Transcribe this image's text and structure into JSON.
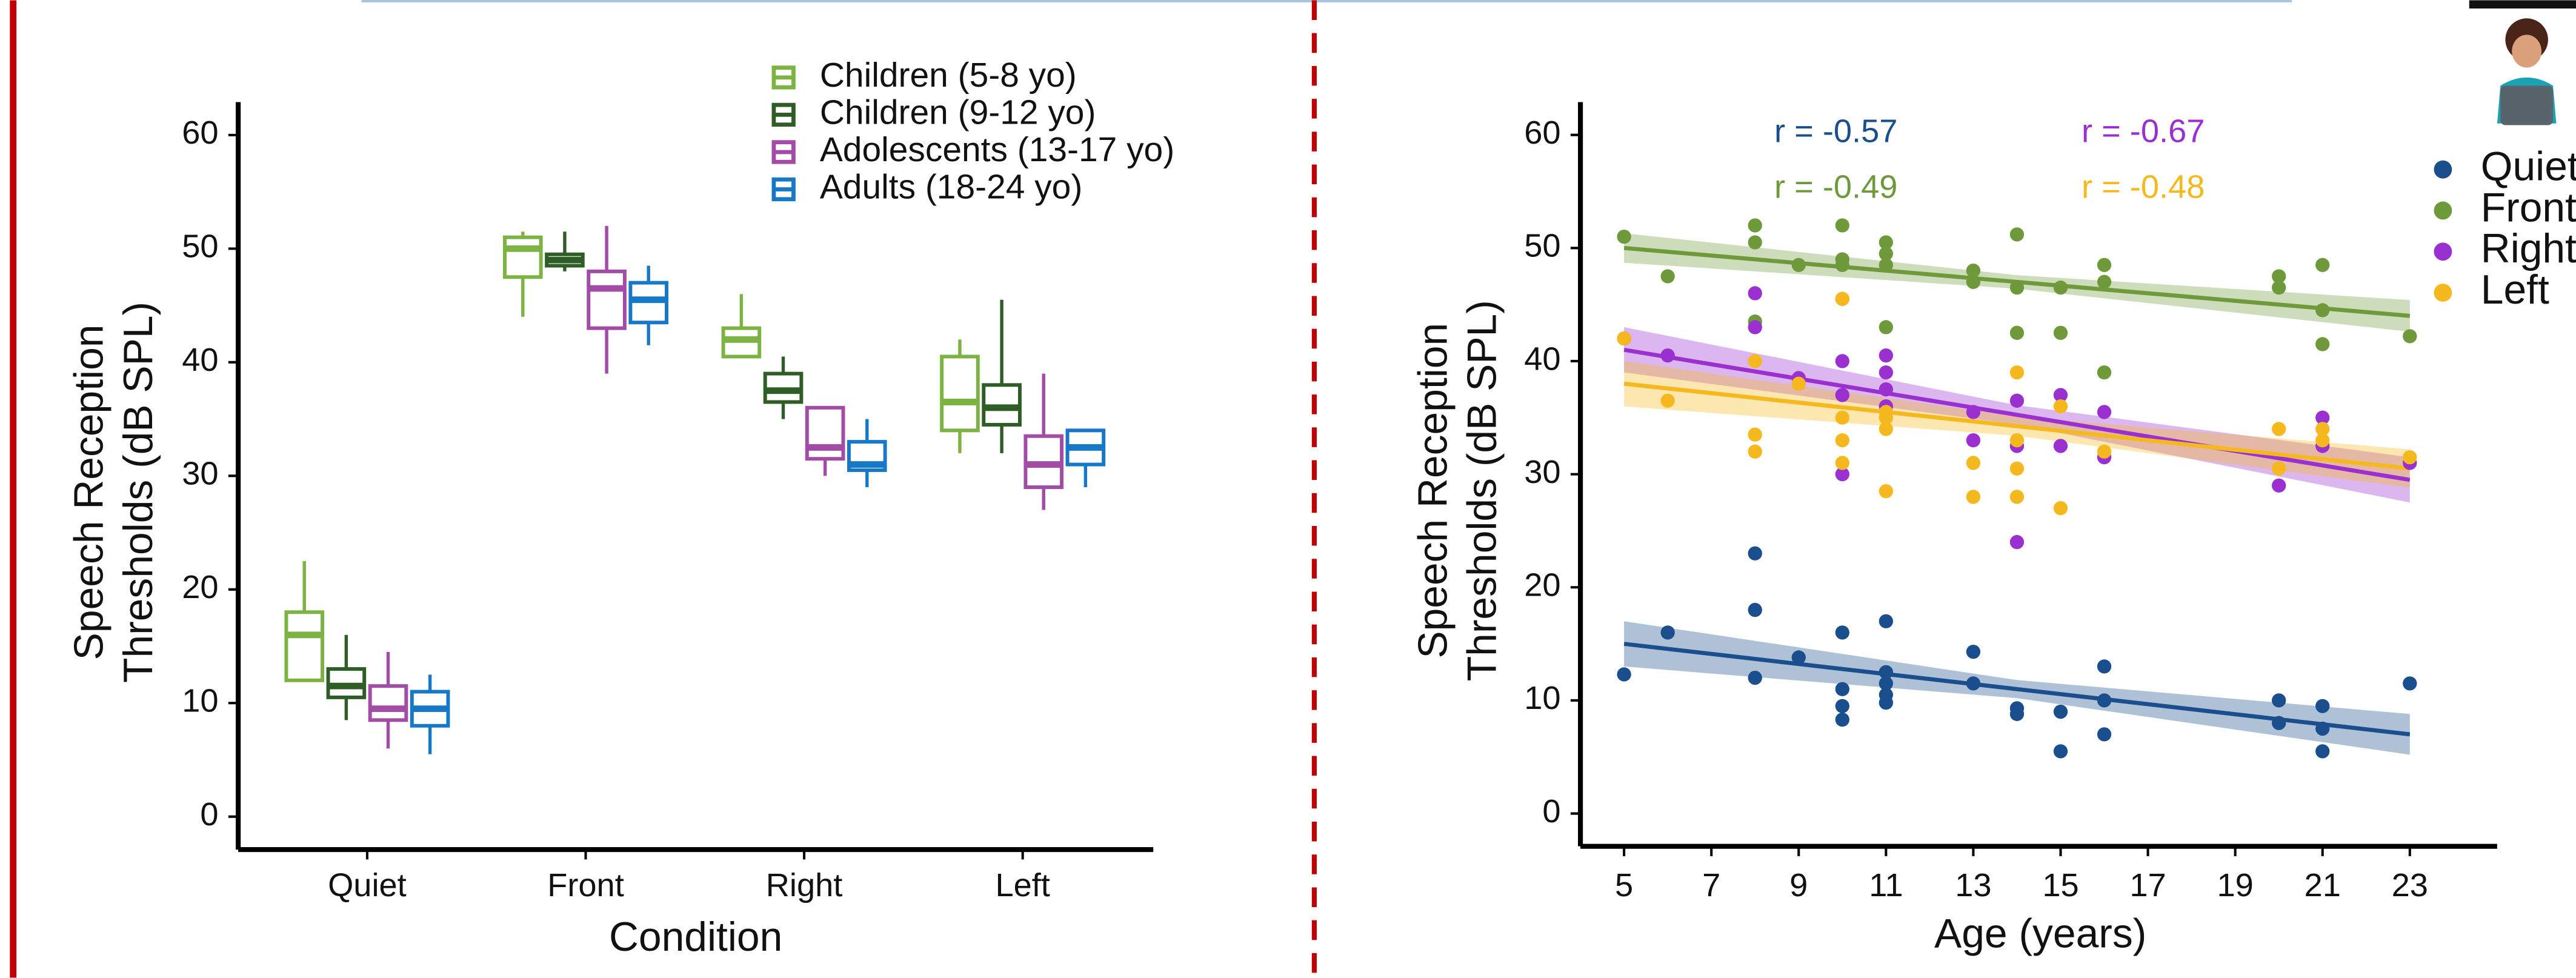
{
  "chart_data": [
    {
      "type": "box",
      "xlabel": "Condition",
      "ylabel": [
        "Speech Reception",
        "Thresholds (dB SPL)"
      ],
      "categories": [
        "Quiet",
        "Front",
        "Right",
        "Left"
      ],
      "ylim": [
        -2.9,
        62.9
      ],
      "yticks": [
        0,
        10,
        20,
        30,
        40,
        50,
        60
      ],
      "series": [
        {
          "name": "Children (5-8 yo)",
          "color": "#7cb342",
          "boxes": [
            {
              "min": 12,
              "q1": 12,
              "median": 16,
              "q3": 18,
              "max": 22.5
            },
            {
              "min": 44,
              "q1": 47.5,
              "median": 50,
              "q3": 51,
              "max": 51.5
            },
            {
              "min": 40.5,
              "q1": 40.5,
              "median": 42,
              "q3": 43,
              "max": 46
            },
            {
              "min": 32,
              "q1": 34,
              "median": 36.5,
              "q3": 40.5,
              "max": 42
            }
          ]
        },
        {
          "name": "Children (9-12 yo)",
          "color": "#2e5e25",
          "boxes": [
            {
              "min": 8.5,
              "q1": 10.5,
              "median": 11.5,
              "q3": 13,
              "max": 16
            },
            {
              "min": 48,
              "q1": 48.5,
              "median": 49,
              "q3": 49.5,
              "max": 51.5
            },
            {
              "min": 35,
              "q1": 36.5,
              "median": 37.5,
              "q3": 39,
              "max": 40.5
            },
            {
              "min": 32,
              "q1": 34.5,
              "median": 36,
              "q3": 38,
              "max": 45.5
            }
          ]
        },
        {
          "name": "Adolescents (13-17 yo)",
          "color": "#a24ca8",
          "boxes": [
            {
              "min": 6,
              "q1": 8.5,
              "median": 9.5,
              "q3": 11.5,
              "max": 14.5
            },
            {
              "min": 39,
              "q1": 43,
              "median": 46.5,
              "q3": 48,
              "max": 52
            },
            {
              "min": 30,
              "q1": 31.5,
              "median": 32.5,
              "q3": 36,
              "max": 36
            },
            {
              "min": 27,
              "q1": 29,
              "median": 31,
              "q3": 33.5,
              "max": 39
            }
          ]
        },
        {
          "name": "Adults (18-24 yo)",
          "color": "#1878c8",
          "boxes": [
            {
              "min": 5.5,
              "q1": 8,
              "median": 9.5,
              "q3": 11,
              "max": 12.5
            },
            {
              "min": 41.5,
              "q1": 43.5,
              "median": 45.5,
              "q3": 47,
              "max": 48.5
            },
            {
              "min": 29,
              "q1": 30.5,
              "median": 31,
              "q3": 33,
              "max": 35
            },
            {
              "min": 29,
              "q1": 31,
              "median": 32.5,
              "q3": 34,
              "max": 34
            }
          ]
        }
      ]
    },
    {
      "type": "scatter",
      "xlabel": "Age (years)",
      "ylabel": [
        "Speech Reception",
        "Thresholds (dB SPL)"
      ],
      "xlim": [
        4,
        25
      ],
      "xticks": [
        5,
        7,
        9,
        11,
        13,
        15,
        17,
        19,
        21,
        23
      ],
      "ylim": [
        -2.9,
        62.9
      ],
      "yticks": [
        0,
        10,
        20,
        30,
        40,
        50,
        60
      ],
      "annotations": [
        {
          "text": "r = -0.57",
          "color": "#1a4e8c"
        },
        {
          "text": "r = -0.67",
          "color": "#9b30d0"
        },
        {
          "text": "r = -0.49",
          "color": "#6f9a3c"
        },
        {
          "text": "r = -0.48",
          "color": "#f5b91f"
        }
      ],
      "series": [
        {
          "name": "Quiet",
          "color": "#1a4e8c",
          "x": [
            5,
            6,
            8,
            8,
            8,
            9,
            10,
            10,
            10,
            10,
            11,
            11,
            11,
            11,
            11,
            13,
            13,
            14,
            14,
            15,
            15,
            16,
            16,
            16,
            20,
            20,
            21,
            21,
            21,
            23
          ],
          "values": [
            12.3,
            16,
            23,
            18,
            12,
            13.8,
            16,
            11,
            9.5,
            8.3,
            17,
            12.5,
            11.5,
            10.5,
            9.8,
            14.3,
            11.5,
            9.3,
            8.8,
            9,
            5.5,
            13,
            10,
            7,
            10,
            8,
            9.5,
            7.5,
            5.5,
            11.5
          ],
          "fit": {
            "x": [
              5,
              14,
              23
            ],
            "values": [
              15,
              11,
              7
            ],
            "lower": [
              13,
              10.2,
              5.2
            ],
            "upper": [
              17,
              11.8,
              8.8
            ]
          }
        },
        {
          "name": "Front",
          "color": "#6f9a3c",
          "x": [
            5,
            6,
            8,
            8,
            8,
            9,
            10,
            10,
            10,
            10,
            11,
            11,
            11,
            11,
            13,
            13,
            14,
            14,
            14,
            15,
            15,
            16,
            16,
            16,
            20,
            20,
            21,
            21,
            21,
            23
          ],
          "values": [
            51,
            47.5,
            52,
            50.5,
            43.5,
            48.5,
            52,
            49,
            48.5,
            45.5,
            50.5,
            49.5,
            48.5,
            43,
            48,
            47,
            51.2,
            46.5,
            42.5,
            46.5,
            42.5,
            48.5,
            47,
            39,
            47.5,
            46.5,
            48.5,
            44.5,
            41.5,
            42.2
          ],
          "fit": {
            "x": [
              5,
              14,
              23
            ],
            "values": [
              50,
              47,
              44
            ],
            "lower": [
              48.7,
              46.4,
              42.6
            ],
            "upper": [
              51.3,
              47.6,
              45.4
            ]
          }
        },
        {
          "name": "Right",
          "color": "#9b30d0",
          "x": [
            5,
            6,
            8,
            8,
            9,
            10,
            10,
            10,
            11,
            11,
            11,
            11,
            13,
            13,
            14,
            14,
            14,
            15,
            15,
            16,
            16,
            20,
            21,
            21,
            23
          ],
          "values": [
            42,
            40.5,
            46,
            43,
            38.5,
            40,
            37,
            30,
            40.5,
            39,
            37.5,
            36,
            35.5,
            33,
            36.5,
            32.5,
            24,
            37,
            32.5,
            35.5,
            31.5,
            29,
            35,
            32.5,
            31
          ],
          "fit": {
            "x": [
              5,
              14,
              23
            ],
            "values": [
              41,
              35.25,
              29.5
            ],
            "lower": [
              39,
              34.4,
              27.5
            ],
            "upper": [
              43,
              36.1,
              31.5
            ]
          }
        },
        {
          "name": "Left",
          "color": "#f5b91f",
          "x": [
            5,
            6,
            8,
            8,
            8,
            9,
            10,
            10,
            10,
            10,
            11,
            11,
            11,
            11,
            13,
            13,
            14,
            14,
            14,
            14,
            15,
            15,
            16,
            20,
            20,
            21,
            21,
            23
          ],
          "values": [
            42,
            36.5,
            40,
            33.5,
            32,
            38,
            45.5,
            35,
            33,
            31,
            35.5,
            35,
            34,
            28.5,
            31,
            28,
            39,
            33,
            30.5,
            28,
            36,
            27,
            32,
            34,
            30.5,
            34,
            33,
            31.5
          ],
          "fit": {
            "x": [
              5,
              14,
              23
            ],
            "values": [
              38,
              34.25,
              30.5
            ],
            "lower": [
              36,
              33.4,
              28.8
            ],
            "upper": [
              40,
              35.1,
              32.2
            ]
          }
        }
      ]
    }
  ]
}
